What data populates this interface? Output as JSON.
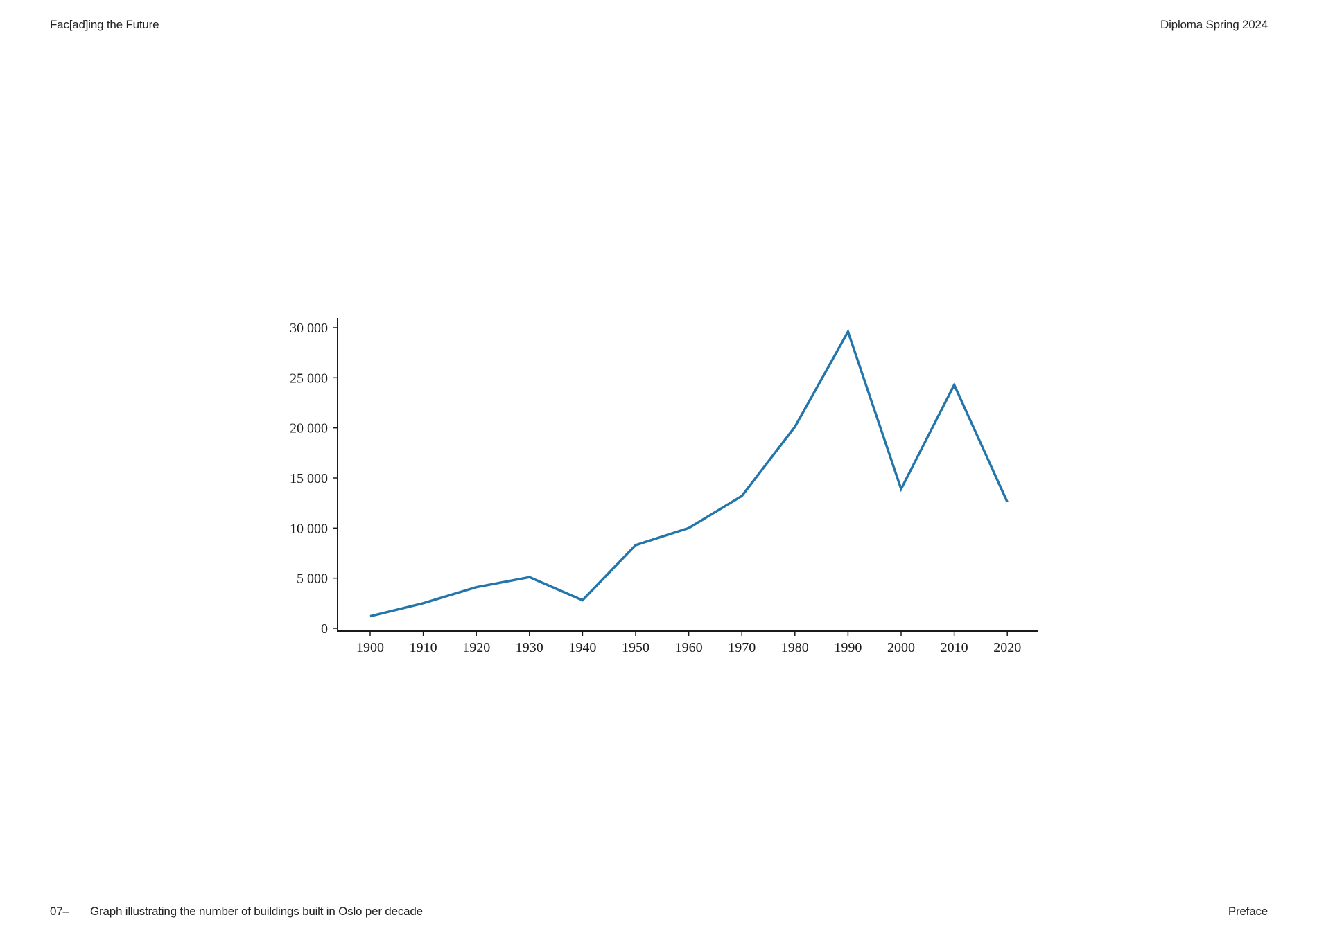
{
  "header": {
    "left": "Fac[ad]ing the Future",
    "right": "Diploma Spring 2024"
  },
  "footer": {
    "page_number": "07–",
    "caption": "Graph illustrating the number of buildings built in Oslo per decade",
    "section": "Preface"
  },
  "colors": {
    "line": "#2476aa",
    "axis": "#1a1a1a"
  },
  "chart_data": {
    "type": "line",
    "title": "",
    "xlabel": "",
    "ylabel": "",
    "grid": false,
    "legend": false,
    "x": [
      1900,
      1910,
      1920,
      1930,
      1940,
      1950,
      1960,
      1970,
      1980,
      1990,
      2000,
      2010,
      2020
    ],
    "x_tick_labels": [
      "1900",
      "1910",
      "1920",
      "1930",
      "1940",
      "1950",
      "1960",
      "1970",
      "1980",
      "1990",
      "2000",
      "2010",
      "2020"
    ],
    "y_ticks": [
      0,
      5000,
      10000,
      15000,
      20000,
      25000,
      30000
    ],
    "y_tick_labels": [
      "0",
      "5 000",
      "10 000",
      "15 000",
      "20 000",
      "25 000",
      "30 000"
    ],
    "ylim": [
      0,
      30000
    ],
    "series": [
      {
        "values": [
          1200,
          2500,
          4100,
          5100,
          2800,
          8300,
          10000,
          13200,
          20100,
          29600,
          13900,
          24300,
          12600
        ]
      }
    ]
  }
}
